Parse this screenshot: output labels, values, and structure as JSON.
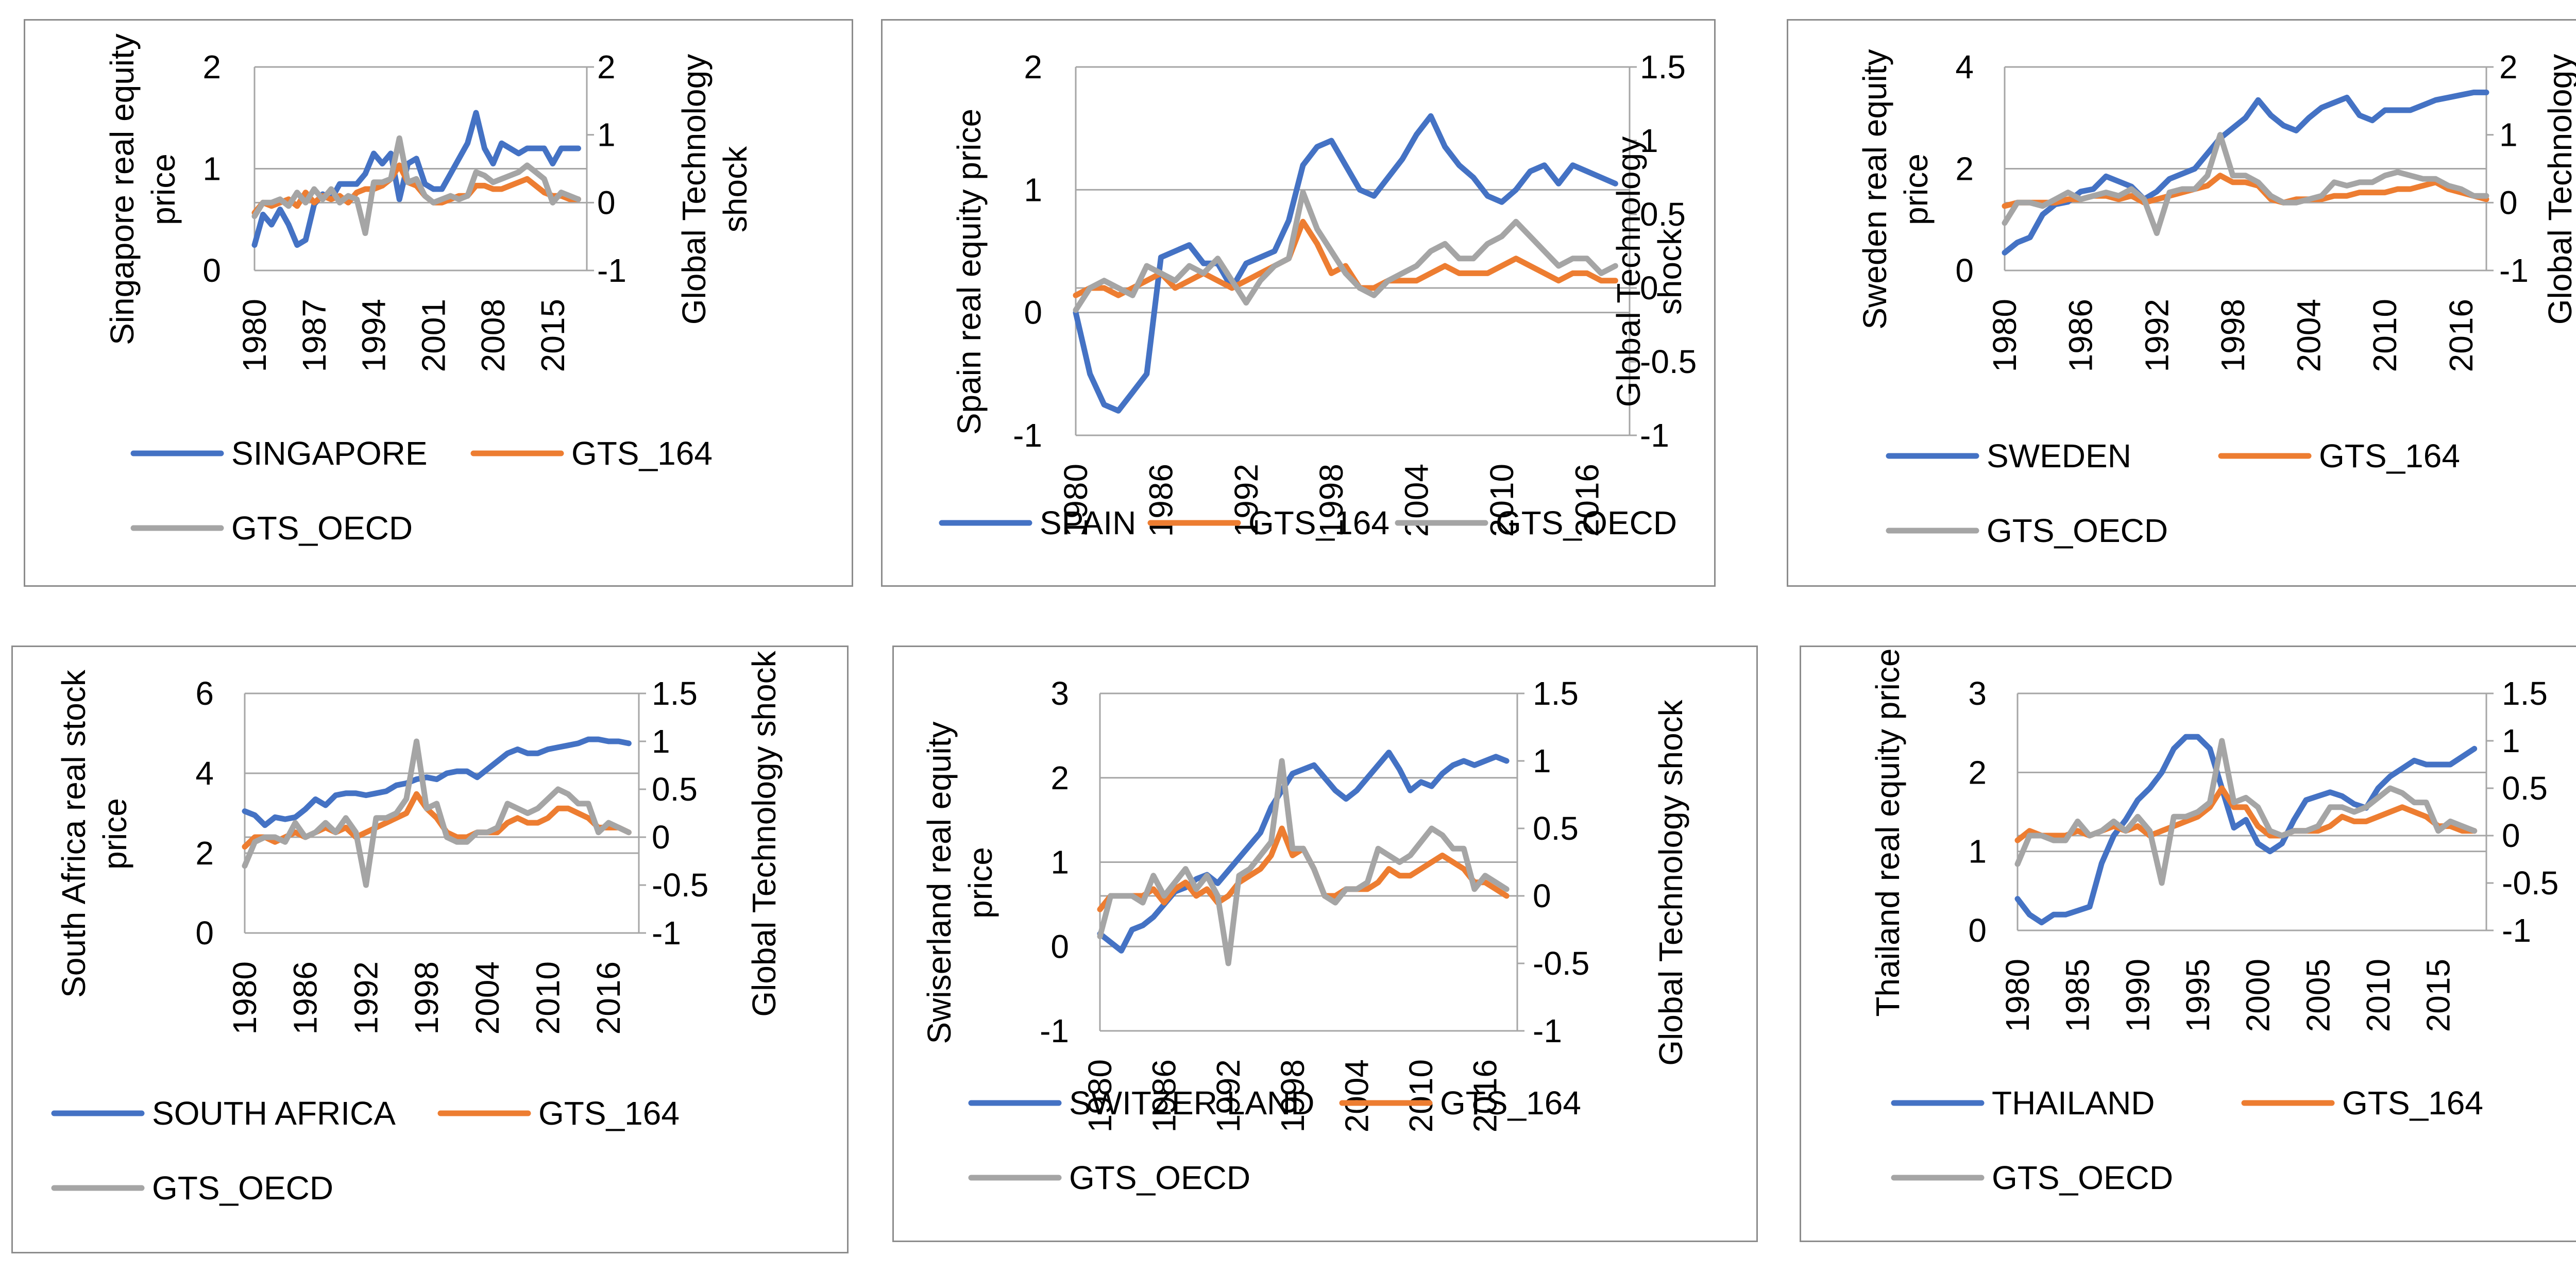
{
  "colors": {
    "country": "#4472C4",
    "gts164": "#ED7D31",
    "gtsoecd": "#A5A5A5",
    "grid": "#A6A6A6"
  },
  "chart_data": [
    {
      "type": "line",
      "title": "",
      "ylabel": "Singapore real equity price",
      "y2label": "Global Technology shock",
      "ylim": [
        0,
        2
      ],
      "yticks": [
        0,
        1,
        2
      ],
      "y2lim": [
        -1,
        2
      ],
      "y2ticks": [
        -1,
        0,
        1,
        2
      ],
      "xlim": [
        1980,
        2019
      ],
      "xticks": [
        1980,
        1987,
        1994,
        2001,
        2008,
        2015
      ],
      "legend": [
        "SINGAPORE",
        "GTS_164",
        "GTS_OECD"
      ],
      "series": [
        {
          "name": "SINGAPORE",
          "axis": "left",
          "x0": 1980,
          "values": [
            0.25,
            0.55,
            0.45,
            0.6,
            0.45,
            0.25,
            0.3,
            0.65,
            0.75,
            0.7,
            0.85,
            0.85,
            0.85,
            0.95,
            1.15,
            1.05,
            1.15,
            0.7,
            1.05,
            1.1,
            0.85,
            0.8,
            0.8,
            0.95,
            1.1,
            1.25,
            1.55,
            1.2,
            1.05,
            1.25,
            1.2,
            1.15,
            1.2,
            1.2,
            1.2,
            1.05,
            1.2,
            1.2,
            1.2
          ]
        },
        {
          "name": "GTS_164",
          "axis": "right",
          "x0": 1980,
          "values": [
            -0.15,
            0.0,
            -0.05,
            0.0,
            0.05,
            -0.05,
            0.15,
            0.0,
            0.1,
            0.05,
            0.1,
            0.0,
            0.15,
            0.2,
            0.2,
            0.25,
            0.35,
            0.55,
            0.3,
            0.25,
            0.1,
            0.0,
            0.0,
            0.05,
            0.1,
            0.1,
            0.25,
            0.25,
            0.2,
            0.2,
            0.25,
            0.3,
            0.35,
            0.25,
            0.15,
            0.1,
            0.1,
            0.05,
            0.05
          ]
        },
        {
          "name": "GTS_OECD",
          "axis": "right",
          "x0": 1980,
          "values": [
            -0.2,
            0.0,
            0.0,
            0.05,
            -0.05,
            0.15,
            0.0,
            0.2,
            0.05,
            0.2,
            0.0,
            0.1,
            0.05,
            -0.45,
            0.3,
            0.3,
            0.35,
            0.95,
            0.3,
            0.35,
            0.1,
            0.0,
            0.05,
            0.1,
            0.05,
            0.1,
            0.45,
            0.4,
            0.3,
            0.35,
            0.4,
            0.45,
            0.55,
            0.45,
            0.35,
            0.0,
            0.15,
            0.1,
            0.05
          ]
        }
      ]
    },
    {
      "type": "line",
      "title": "",
      "ylabel": "Spain real equity price",
      "y2label": "Global Technology shock",
      "ylim": [
        -1,
        2
      ],
      "yticks": [
        -1,
        0,
        1,
        2
      ],
      "y2lim": [
        -1,
        1.5
      ],
      "y2ticks": [
        -1,
        -0.5,
        0,
        0.5,
        1,
        1.5
      ],
      "xlim": [
        1980,
        2019
      ],
      "xticks": [
        1980,
        1986,
        1992,
        1998,
        2004,
        2010,
        2016
      ],
      "legend": [
        "SPAIN",
        "GTS_164",
        "GTS_OECD"
      ],
      "series": [
        {
          "name": "SPAIN",
          "axis": "left",
          "x0": 1980,
          "values": [
            0.0,
            -0.5,
            -0.75,
            -0.8,
            -0.65,
            -0.5,
            0.45,
            0.5,
            0.55,
            0.4,
            0.4,
            0.2,
            0.4,
            0.45,
            0.5,
            0.75,
            1.2,
            1.35,
            1.4,
            1.2,
            1.0,
            0.95,
            1.1,
            1.25,
            1.45,
            1.6,
            1.35,
            1.2,
            1.1,
            0.95,
            0.9,
            1.0,
            1.15,
            1.2,
            1.05,
            1.2,
            1.15,
            1.1,
            1.05
          ]
        },
        {
          "name": "GTS_164",
          "axis": "right",
          "x0": 1980,
          "values": [
            -0.05,
            0.0,
            0.0,
            -0.05,
            0.0,
            0.05,
            0.1,
            0.0,
            0.05,
            0.1,
            0.05,
            0.0,
            0.05,
            0.1,
            0.15,
            0.2,
            0.45,
            0.3,
            0.1,
            0.15,
            0.0,
            0.0,
            0.05,
            0.05,
            0.05,
            0.1,
            0.15,
            0.1,
            0.1,
            0.1,
            0.15,
            0.2,
            0.15,
            0.1,
            0.05,
            0.1,
            0.1,
            0.05,
            0.05
          ]
        },
        {
          "name": "GTS_OECD",
          "axis": "right",
          "x0": 1980,
          "values": [
            -0.15,
            0.0,
            0.05,
            0.0,
            -0.05,
            0.15,
            0.1,
            0.05,
            0.15,
            0.1,
            0.2,
            0.05,
            -0.1,
            0.05,
            0.15,
            0.2,
            0.65,
            0.4,
            0.25,
            0.1,
            0.0,
            -0.05,
            0.05,
            0.1,
            0.15,
            0.25,
            0.3,
            0.2,
            0.2,
            0.3,
            0.35,
            0.45,
            0.35,
            0.25,
            0.15,
            0.2,
            0.2,
            0.1,
            0.15
          ]
        }
      ]
    },
    {
      "type": "line",
      "title": "",
      "ylabel": "Sweden real equity price",
      "y2label": "Global Technology shock",
      "ylim": [
        0,
        4
      ],
      "yticks": [
        0,
        2,
        4
      ],
      "y2lim": [
        -1,
        2
      ],
      "y2ticks": [
        -1,
        0,
        1,
        2
      ],
      "xlim": [
        1980,
        2018
      ],
      "xticks": [
        1980,
        1986,
        1992,
        1998,
        2004,
        2010,
        2016
      ],
      "legend": [
        "SWEDEN",
        "GTS_164",
        "GTS_OECD"
      ],
      "series": [
        {
          "name": "SWEDEN",
          "axis": "left",
          "x0": 1980,
          "values": [
            0.35,
            0.55,
            0.65,
            1.1,
            1.3,
            1.35,
            1.55,
            1.6,
            1.85,
            1.75,
            1.65,
            1.4,
            1.55,
            1.8,
            1.9,
            2.0,
            2.3,
            2.6,
            2.8,
            3.0,
            3.35,
            3.05,
            2.85,
            2.75,
            3.0,
            3.2,
            3.3,
            3.4,
            3.05,
            2.95,
            3.15,
            3.15,
            3.15,
            3.25,
            3.35,
            3.4,
            3.45,
            3.5,
            3.5
          ]
        },
        {
          "name": "GTS_164",
          "axis": "right",
          "x0": 1980,
          "values": [
            -0.05,
            0.0,
            0.0,
            0.0,
            0.0,
            0.05,
            0.05,
            0.1,
            0.1,
            0.05,
            0.1,
            0.0,
            0.05,
            0.1,
            0.15,
            0.2,
            0.25,
            0.4,
            0.3,
            0.3,
            0.25,
            0.05,
            0.0,
            0.05,
            0.05,
            0.05,
            0.1,
            0.1,
            0.15,
            0.15,
            0.15,
            0.2,
            0.2,
            0.25,
            0.3,
            0.2,
            0.15,
            0.1,
            0.05
          ]
        },
        {
          "name": "GTS_OECD",
          "axis": "right",
          "x0": 1980,
          "values": [
            -0.3,
            0.0,
            0.0,
            -0.05,
            0.05,
            0.15,
            0.05,
            0.1,
            0.15,
            0.1,
            0.2,
            0.05,
            -0.45,
            0.15,
            0.2,
            0.2,
            0.4,
            1.0,
            0.4,
            0.4,
            0.3,
            0.1,
            0.0,
            0.0,
            0.05,
            0.1,
            0.3,
            0.25,
            0.3,
            0.3,
            0.4,
            0.45,
            0.4,
            0.35,
            0.35,
            0.25,
            0.2,
            0.1,
            0.1
          ]
        }
      ]
    },
    {
      "type": "line",
      "title": "",
      "ylabel": "South Africa  real stock price",
      "y2label": "Global Technology shock",
      "ylim": [
        0,
        6
      ],
      "yticks": [
        0,
        2,
        4,
        6
      ],
      "y2lim": [
        -1,
        1.5
      ],
      "y2ticks": [
        -1,
        -0.5,
        0,
        0.5,
        1,
        1.5
      ],
      "xlim": [
        1980,
        2019
      ],
      "xticks": [
        1980,
        1986,
        1992,
        1998,
        2004,
        2010,
        2016
      ],
      "legend": [
        "SOUTH AFRICA",
        "GTS_164",
        "GTS_OECD"
      ],
      "series": [
        {
          "name": "SOUTH AFRICA",
          "axis": "left",
          "x0": 1980,
          "values": [
            3.05,
            2.95,
            2.7,
            2.9,
            2.85,
            2.9,
            3.1,
            3.35,
            3.2,
            3.45,
            3.5,
            3.5,
            3.45,
            3.5,
            3.55,
            3.7,
            3.75,
            3.85,
            3.9,
            3.85,
            4.0,
            4.05,
            4.05,
            3.9,
            4.1,
            4.3,
            4.5,
            4.6,
            4.5,
            4.5,
            4.6,
            4.65,
            4.7,
            4.75,
            4.85,
            4.85,
            4.8,
            4.8,
            4.75
          ]
        },
        {
          "name": "GTS_164",
          "axis": "right",
          "x0": 1980,
          "values": [
            -0.1,
            0.0,
            0.0,
            -0.05,
            0.0,
            0.05,
            0.0,
            0.05,
            0.1,
            0.05,
            0.1,
            0.0,
            0.05,
            0.1,
            0.15,
            0.2,
            0.25,
            0.45,
            0.3,
            0.2,
            0.05,
            0.0,
            0.0,
            0.05,
            0.05,
            0.05,
            0.15,
            0.2,
            0.15,
            0.15,
            0.2,
            0.3,
            0.3,
            0.25,
            0.2,
            0.1,
            0.1,
            0.1,
            0.05
          ]
        },
        {
          "name": "GTS_OECD",
          "axis": "right",
          "x0": 1980,
          "values": [
            -0.3,
            -0.05,
            0.0,
            0.0,
            -0.05,
            0.15,
            0.0,
            0.05,
            0.15,
            0.05,
            0.2,
            0.05,
            -0.5,
            0.2,
            0.2,
            0.25,
            0.4,
            1.0,
            0.3,
            0.35,
            0.0,
            -0.05,
            -0.05,
            0.05,
            0.05,
            0.1,
            0.35,
            0.3,
            0.25,
            0.3,
            0.4,
            0.5,
            0.45,
            0.35,
            0.35,
            0.05,
            0.15,
            0.1,
            0.05
          ]
        }
      ]
    },
    {
      "type": "line",
      "title": "",
      "ylabel": "Swiserland real equity price",
      "y2label": "Global Technology shock",
      "ylim": [
        -1,
        3
      ],
      "yticks": [
        -1,
        0,
        1,
        2,
        3
      ],
      "y2lim": [
        -1,
        1.5
      ],
      "y2ticks": [
        -1,
        -0.5,
        0,
        0.5,
        1,
        1.5
      ],
      "xlim": [
        1980,
        2019
      ],
      "xticks": [
        1980,
        1986,
        1992,
        1998,
        2004,
        2010,
        2016
      ],
      "legend": [
        "SWITZER LAND",
        "GTS_164",
        "GTS_OECD"
      ],
      "series": [
        {
          "name": "SWITZER LAND",
          "axis": "left",
          "x0": 1980,
          "values": [
            0.15,
            0.05,
            -0.05,
            0.2,
            0.25,
            0.35,
            0.5,
            0.65,
            0.7,
            0.8,
            0.85,
            0.75,
            0.9,
            1.05,
            1.2,
            1.35,
            1.65,
            1.85,
            2.05,
            2.1,
            2.15,
            2.0,
            1.85,
            1.75,
            1.85,
            2.0,
            2.15,
            2.3,
            2.1,
            1.85,
            1.95,
            1.9,
            2.05,
            2.15,
            2.2,
            2.15,
            2.2,
            2.25,
            2.2
          ]
        },
        {
          "name": "GTS_164",
          "axis": "right",
          "x0": 1980,
          "values": [
            -0.1,
            0.0,
            0.0,
            0.0,
            0.0,
            0.05,
            -0.05,
            0.05,
            0.1,
            0.0,
            0.05,
            -0.05,
            0.0,
            0.1,
            0.15,
            0.2,
            0.3,
            0.5,
            0.3,
            0.35,
            0.2,
            0.0,
            0.0,
            0.05,
            0.05,
            0.05,
            0.1,
            0.2,
            0.15,
            0.15,
            0.2,
            0.25,
            0.3,
            0.25,
            0.2,
            0.1,
            0.1,
            0.05,
            0.0
          ]
        },
        {
          "name": "GTS_OECD",
          "axis": "right",
          "x0": 1980,
          "values": [
            -0.3,
            0.0,
            0.0,
            0.0,
            -0.05,
            0.15,
            0.0,
            0.1,
            0.2,
            0.05,
            0.15,
            0.0,
            -0.5,
            0.15,
            0.2,
            0.3,
            0.4,
            1.0,
            0.35,
            0.35,
            0.2,
            0.0,
            -0.05,
            0.05,
            0.05,
            0.1,
            0.35,
            0.3,
            0.25,
            0.3,
            0.4,
            0.5,
            0.45,
            0.35,
            0.35,
            0.05,
            0.15,
            0.1,
            0.05
          ]
        }
      ]
    },
    {
      "type": "line",
      "title": "",
      "ylabel": "Thailand real equity price",
      "y2label": "Global Technology shock",
      "ylim": [
        0,
        3
      ],
      "yticks": [
        0,
        1,
        2,
        3
      ],
      "y2lim": [
        -1,
        1.5
      ],
      "y2ticks": [
        -1,
        -0.5,
        0,
        0.5,
        1,
        1.5
      ],
      "xlim": [
        1980,
        2019
      ],
      "xticks": [
        1980,
        1985,
        1990,
        1995,
        2000,
        2005,
        2010,
        2015
      ],
      "legend": [
        "THAILAND",
        "GTS_164",
        "GTS_OECD"
      ],
      "series": [
        {
          "name": "THAILAND",
          "axis": "left",
          "x0": 1980,
          "values": [
            0.4,
            0.2,
            0.1,
            0.2,
            0.2,
            0.25,
            0.3,
            0.85,
            1.2,
            1.4,
            1.65,
            1.8,
            2.0,
            2.3,
            2.45,
            2.45,
            2.3,
            1.8,
            1.3,
            1.4,
            1.1,
            1.0,
            1.1,
            1.4,
            1.65,
            1.7,
            1.75,
            1.7,
            1.6,
            1.55,
            1.8,
            1.95,
            2.05,
            2.15,
            2.1,
            2.1,
            2.1,
            2.2,
            2.3
          ]
        },
        {
          "name": "GTS_164",
          "axis": "right",
          "x0": 1980,
          "values": [
            -0.05,
            0.05,
            0.0,
            0.0,
            0.0,
            0.05,
            0.0,
            0.05,
            0.1,
            0.05,
            0.1,
            0.0,
            0.05,
            0.1,
            0.15,
            0.2,
            0.3,
            0.5,
            0.3,
            0.3,
            0.1,
            0.0,
            0.0,
            0.05,
            0.05,
            0.05,
            0.1,
            0.2,
            0.15,
            0.15,
            0.2,
            0.25,
            0.3,
            0.25,
            0.2,
            0.1,
            0.1,
            0.05,
            0.05
          ]
        },
        {
          "name": "GTS_OECD",
          "axis": "right",
          "x0": 1980,
          "values": [
            -0.3,
            0.0,
            0.0,
            -0.05,
            -0.05,
            0.15,
            0.0,
            0.05,
            0.15,
            0.05,
            0.2,
            0.05,
            -0.5,
            0.2,
            0.2,
            0.25,
            0.35,
            1.0,
            0.35,
            0.4,
            0.3,
            0.05,
            0.0,
            0.05,
            0.05,
            0.1,
            0.3,
            0.3,
            0.25,
            0.3,
            0.4,
            0.5,
            0.45,
            0.35,
            0.35,
            0.05,
            0.15,
            0.1,
            0.05
          ]
        }
      ]
    }
  ]
}
